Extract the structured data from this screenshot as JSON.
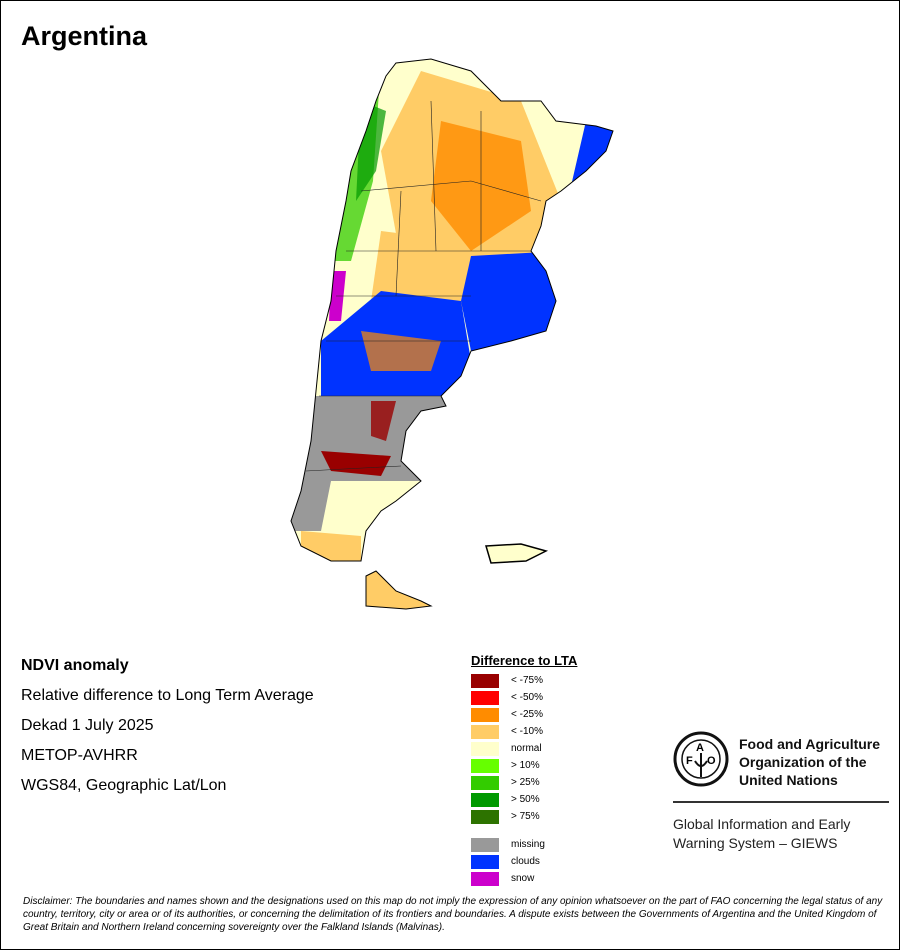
{
  "title": "Argentina",
  "info": {
    "product": "NDVI anomaly",
    "description": "Relative difference to Long Term Average",
    "period": "Dekad 1 July 2025",
    "sensor": "METOP-AVHRR",
    "projection": "WGS84, Geographic Lat/Lon"
  },
  "legend": {
    "title": "Difference to LTA",
    "items": [
      {
        "label": "< -75%",
        "color": "#990000"
      },
      {
        "label": "< -50%",
        "color": "#ff0000"
      },
      {
        "label": "< -25%",
        "color": "#ff8c00"
      },
      {
        "label": "< -10%",
        "color": "#ffcc66"
      },
      {
        "label": "normal",
        "color": "#ffffcc"
      },
      {
        "label": "> 10%",
        "color": "#66ff00"
      },
      {
        "label": "> 25%",
        "color": "#33cc00"
      },
      {
        "label": "> 50%",
        "color": "#009900"
      },
      {
        "label": "> 75%",
        "color": "#2d7300"
      }
    ],
    "extra": [
      {
        "label": "missing",
        "color": "#999999"
      },
      {
        "label": "clouds",
        "color": "#0033ff"
      },
      {
        "label": "snow",
        "color": "#cc00cc"
      }
    ]
  },
  "fao": {
    "logo_text": "FAO FIAT PANIS",
    "name": "Food and Agriculture Organization of the United Nations",
    "giews": "Global Information and Early Warning System – GIEWS"
  },
  "disclaimer": "Disclaimer: The boundaries and names shown and the designations used on this map do not imply the expression of any opinion whatsoever on the part of FAO concerning the legal status of any country, territory, city or area or of its authorities, or concerning the delimitation of its frontiers and boundaries. A dispute exists between the Governments of Argentina and the United Kingdom of Great Britain and Northern Ireland concerning sovereignty over the Falkland Islands (Malvinas)."
}
